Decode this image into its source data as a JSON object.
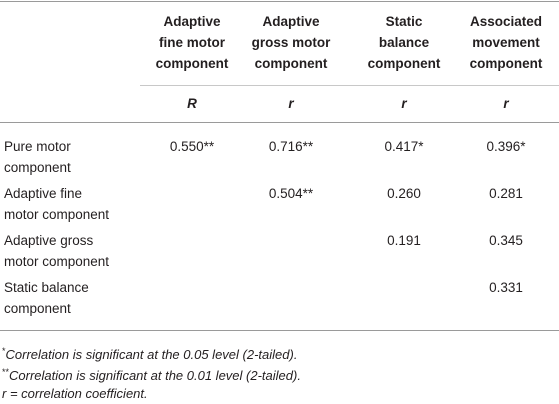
{
  "table": {
    "columns": [
      [
        "Adaptive",
        "fine motor",
        "component"
      ],
      [
        "Adaptive",
        "gross motor",
        "component"
      ],
      [
        "Static",
        "balance",
        "component"
      ],
      [
        "Associated",
        "movement",
        "component"
      ]
    ],
    "subheader": [
      "R",
      "r",
      "r",
      "r"
    ],
    "rows": [
      {
        "label": [
          "Pure motor",
          "component"
        ],
        "cells": [
          "0.550**",
          "0.716**",
          "0.417*",
          "0.396*"
        ]
      },
      {
        "label": [
          "Adaptive fine",
          "motor component"
        ],
        "cells": [
          null,
          "0.504**",
          "0.260",
          "0.281"
        ]
      },
      {
        "label": [
          "Adaptive gross",
          "motor component"
        ],
        "cells": [
          null,
          null,
          "0.191",
          "0.345"
        ]
      },
      {
        "label": [
          "Static balance",
          "component"
        ],
        "cells": [
          null,
          null,
          null,
          "0.331"
        ]
      }
    ]
  },
  "footnotes": [
    {
      "mark": "*",
      "text": "Correlation is significant at the 0.05 level (2-tailed)."
    },
    {
      "mark": "**",
      "text": "Correlation is significant at the 0.01 level (2-tailed)."
    },
    {
      "symbol": "r",
      "text": "= correlation coefficient."
    }
  ]
}
